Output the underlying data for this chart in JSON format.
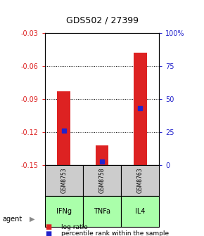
{
  "title": "GDS502 / 27399",
  "samples": [
    "GSM8753",
    "GSM8758",
    "GSM8763"
  ],
  "agents": [
    "IFNg",
    "TNFa",
    "IL4"
  ],
  "log_ratios": [
    -0.083,
    -0.132,
    -0.048
  ],
  "percentile_ranks": [
    26,
    3,
    43
  ],
  "ylim_left": [
    -0.15,
    -0.03
  ],
  "ylim_right": [
    0,
    100
  ],
  "left_ticks": [
    -0.15,
    -0.12,
    -0.09,
    -0.06,
    -0.03
  ],
  "right_ticks": [
    0,
    25,
    50,
    75,
    100
  ],
  "right_tick_labels": [
    "0",
    "25",
    "50",
    "75",
    "100%"
  ],
  "bar_color": "#dd2222",
  "percentile_color": "#2222cc",
  "sample_bg": "#cccccc",
  "agent_bg": "#aaffaa",
  "title_color": "#000000",
  "left_tick_color": "#dd2222",
  "right_tick_color": "#2222cc"
}
